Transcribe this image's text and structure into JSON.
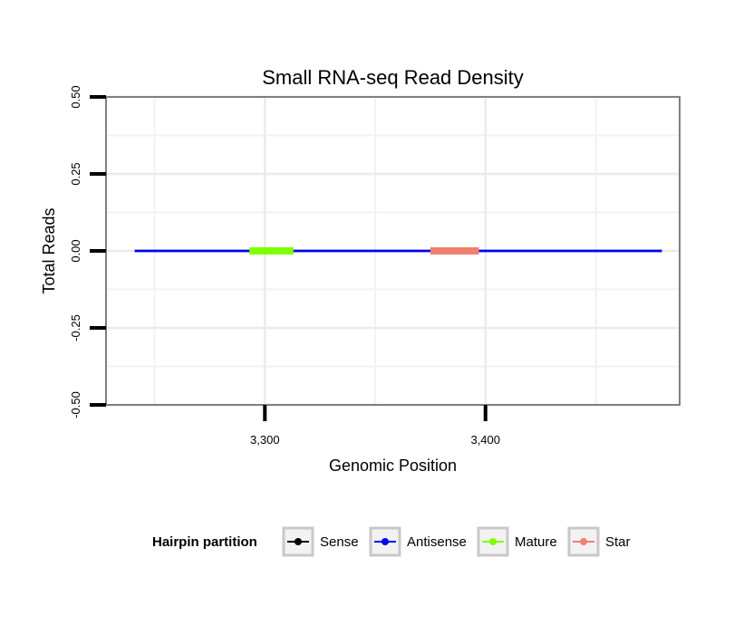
{
  "chart_data": {
    "type": "line",
    "title": "Small RNA-seq Read Density",
    "xlabel": "Genomic Position",
    "ylabel": "Total Reads",
    "xlim": [
      3228,
      3488
    ],
    "ylim": [
      -0.5,
      0.5
    ],
    "x_ticks": [
      {
        "value": 3300,
        "label": "3,300"
      },
      {
        "value": 3400,
        "label": "3,400"
      }
    ],
    "y_ticks": [
      {
        "value": 0.5,
        "label": "0.50"
      },
      {
        "value": 0.25,
        "label": "0.25"
      },
      {
        "value": 0.0,
        "label": "0.00"
      },
      {
        "value": -0.25,
        "label": "-0.25"
      },
      {
        "value": -0.5,
        "label": "-0.50"
      }
    ],
    "x_minor_grid": [
      3250,
      3350,
      3450
    ],
    "y_minor_grid": [
      0.375,
      0.125,
      -0.125,
      -0.375
    ],
    "grid": true,
    "legend_position": "bottom",
    "legend": {
      "title": "Hairpin partition",
      "entries": [
        {
          "name": "Sense",
          "color": "#000000"
        },
        {
          "name": "Antisense",
          "color": "#0000ff"
        },
        {
          "name": "Mature",
          "color": "#7fff00"
        },
        {
          "name": "Star",
          "color": "#f08070"
        }
      ]
    },
    "series": [
      {
        "name": "Sense",
        "color": "#000000",
        "x": [
          3241,
          3480
        ],
        "y": [
          0,
          0
        ]
      },
      {
        "name": "Antisense",
        "color": "#0000ff",
        "x": [
          3241,
          3480
        ],
        "y": [
          0,
          0
        ]
      },
      {
        "name": "Mature",
        "color": "#7fff00",
        "x": [
          3293,
          3313
        ],
        "y": [
          0,
          0
        ]
      },
      {
        "name": "Star",
        "color": "#f08070",
        "x": [
          3375,
          3397
        ],
        "y": [
          0,
          0
        ]
      }
    ]
  }
}
